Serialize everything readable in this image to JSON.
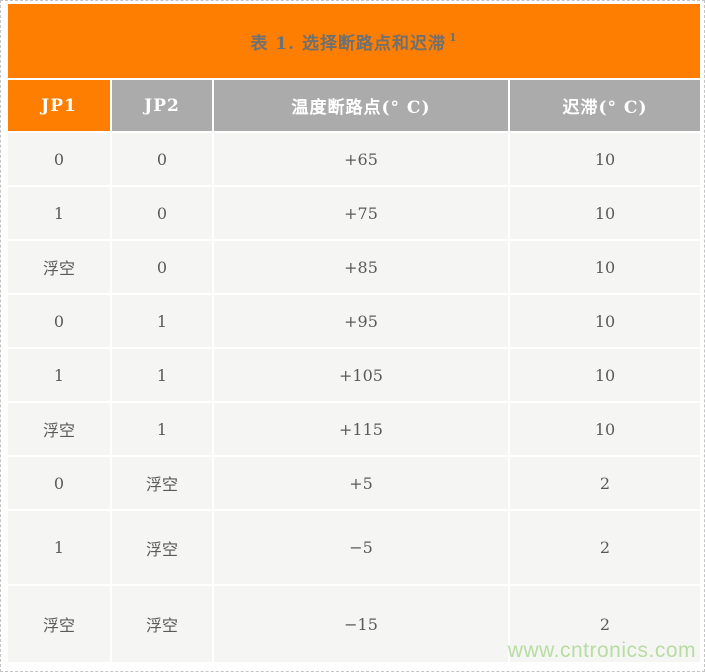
{
  "table": {
    "title": "表 1. 选择断路点和迟滞",
    "title_superscript": "1",
    "headers": [
      "JP1",
      "JP2",
      "温度断路点(° C)",
      "迟滞(° C)"
    ],
    "rows": [
      {
        "jp1": "0",
        "jp2": "0",
        "trip": "+65",
        "hyst": "10"
      },
      {
        "jp1": "1",
        "jp2": "0",
        "trip": "+75",
        "hyst": "10"
      },
      {
        "jp1": "浮空",
        "jp2": "0",
        "trip": "+85",
        "hyst": "10"
      },
      {
        "jp1": "0",
        "jp2": "1",
        "trip": "+95",
        "hyst": "10"
      },
      {
        "jp1": "1",
        "jp2": "1",
        "trip": "+105",
        "hyst": "10"
      },
      {
        "jp1": "浮空",
        "jp2": "1",
        "trip": "+115",
        "hyst": "10"
      },
      {
        "jp1": "0",
        "jp2": "浮空",
        "trip": "+5",
        "hyst": "2"
      },
      {
        "jp1": "1",
        "jp2": "浮空",
        "trip": "−5",
        "hyst": "2"
      },
      {
        "jp1": "浮空",
        "jp2": "浮空",
        "trip": "−15",
        "hyst": "2"
      }
    ]
  },
  "watermark": "www.cntronics.com",
  "colors": {
    "accent_orange": "#fd7e01",
    "header_gray": "#ababab",
    "row_background": "#f5f5f3",
    "watermark_green": "#b7dda2"
  }
}
